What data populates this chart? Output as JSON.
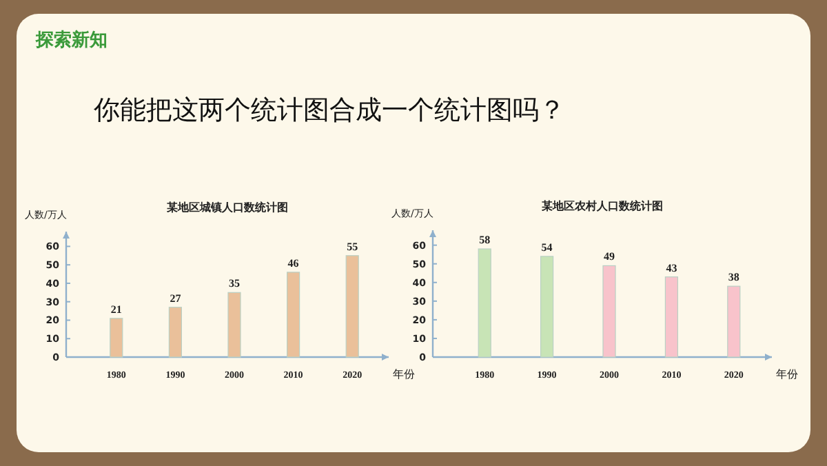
{
  "chart_data": [
    {
      "type": "other",
      "title": "探索新知",
      "annotations": [
        "你能把这两个统计图合成一个统计图吗？"
      ]
    },
    {
      "type": "bar",
      "title": "某地区城镇人口数统计图",
      "ylabel": "人数/万人",
      "xlabel": "年份",
      "categories": [
        "1980",
        "1990",
        "2000",
        "2010",
        "2020"
      ],
      "series": [
        {
          "color": "#eac09a",
          "values": [
            21,
            27,
            35,
            46,
            55
          ]
        }
      ],
      "ylim": [
        0,
        68
      ],
      "yticks": [
        0,
        10,
        20,
        30,
        40,
        50,
        60
      ],
      "data_labels": true,
      "grid": false
    },
    {
      "type": "bar",
      "title": "某地区农村人口数统计图",
      "ylabel": "人数/万人",
      "xlabel": "年份",
      "categories": [
        "1980",
        "1990",
        "2000",
        "2010",
        "2020"
      ],
      "series": [
        {
          "colors": [
            "#c8e4b6",
            "#c8e4b6",
            "#f8c3cb",
            "#f8c3cb",
            "#f8c3cb"
          ],
          "values": [
            58,
            54,
            49,
            43,
            38
          ]
        }
      ],
      "ylim": [
        0,
        68
      ],
      "yticks": [
        0,
        10,
        20,
        30,
        40,
        50,
        60
      ],
      "data_labels": true,
      "grid": false
    }
  ]
}
